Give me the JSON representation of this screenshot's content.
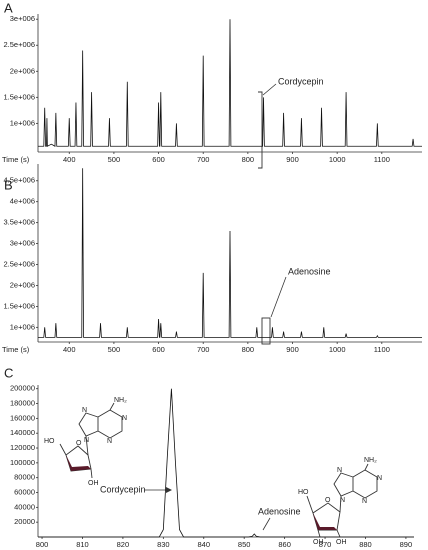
{
  "chart_data": [
    {
      "type": "line",
      "panel_label": "A",
      "x_label": "Time (s)",
      "color": "#111111",
      "annotations": [
        "Cordycepin"
      ],
      "xlim": [
        330,
        1190
      ],
      "xticks": [
        400,
        500,
        600,
        700,
        800,
        900,
        1000,
        1100
      ],
      "ylim": [
        450000,
        3100000
      ],
      "yticks": [
        {
          "value": 1000000,
          "label": "1e+006"
        },
        {
          "value": 1500000,
          "label": "1.5e+006"
        },
        {
          "value": 2000000,
          "label": "2e+006"
        },
        {
          "value": 2500000,
          "label": "2.5e+006"
        },
        {
          "value": 3000000,
          "label": "3e+006"
        }
      ],
      "x": [
        330,
        340,
        343,
        345,
        347,
        349,
        350,
        351,
        360,
        368,
        370,
        372,
        398,
        400,
        402,
        413,
        415,
        417,
        428,
        430,
        432,
        448,
        450,
        452,
        488,
        490,
        492,
        528,
        530,
        532,
        598,
        600,
        602,
        603,
        605,
        607,
        638,
        640,
        642,
        698,
        700,
        702,
        758,
        760,
        762,
        833,
        835,
        837,
        878,
        880,
        882,
        918,
        920,
        922,
        963,
        965,
        967,
        1018,
        1020,
        1022,
        1088,
        1090,
        1092,
        1168,
        1170,
        1172,
        1190
      ],
      "values": [
        560000,
        560000,
        560000,
        1300000,
        560000,
        560000,
        1100000,
        560000,
        600000,
        560000,
        1200000,
        560000,
        560000,
        1100000,
        560000,
        560000,
        1400000,
        560000,
        560000,
        2400000,
        560000,
        560000,
        1600000,
        560000,
        560000,
        1100000,
        560000,
        560000,
        1800000,
        560000,
        560000,
        1400000,
        560000,
        560000,
        1600000,
        560000,
        560000,
        1000000,
        560000,
        560000,
        2300000,
        560000,
        560000,
        3000000,
        560000,
        560000,
        1500000,
        560000,
        560000,
        1200000,
        560000,
        560000,
        1100000,
        560000,
        560000,
        1300000,
        560000,
        560000,
        1600000,
        560000,
        560000,
        1000000,
        560000,
        560000,
        700000,
        560000,
        560000
      ]
    },
    {
      "type": "line",
      "panel_label": "B",
      "x_label": "Time (s)",
      "color": "#111111",
      "annotations": [
        "Adenosine"
      ],
      "xlim": [
        330,
        1190
      ],
      "xticks": [
        400,
        500,
        600,
        700,
        800,
        900,
        1000,
        1100
      ],
      "ylim": [
        650000,
        4900000
      ],
      "yticks": [
        {
          "value": 1000000,
          "label": "1e+006"
        },
        {
          "value": 1500000,
          "label": "1.5e+006"
        },
        {
          "value": 2000000,
          "label": "2e+006"
        },
        {
          "value": 2500000,
          "label": "2.5e+006"
        },
        {
          "value": 3000000,
          "label": "3e+006"
        },
        {
          "value": 3500000,
          "label": "3.5e+006"
        },
        {
          "value": 4000000,
          "label": "4e+006"
        },
        {
          "value": 4500000,
          "label": "4.5e+006"
        }
      ],
      "x": [
        330,
        343,
        345,
        347,
        368,
        370,
        372,
        428,
        430,
        432,
        468,
        470,
        472,
        528,
        530,
        532,
        598,
        600,
        602,
        603,
        605,
        607,
        638,
        640,
        642,
        698,
        700,
        702,
        758,
        760,
        762,
        818,
        820,
        822,
        853,
        855,
        857,
        878,
        880,
        882,
        918,
        920,
        922,
        968,
        970,
        972,
        1018,
        1020,
        1022,
        1088,
        1090,
        1092,
        1190
      ],
      "values": [
        760000,
        760000,
        1000000,
        760000,
        760000,
        1100000,
        760000,
        760000,
        4800000,
        760000,
        760000,
        1100000,
        760000,
        760000,
        1000000,
        760000,
        760000,
        1200000,
        760000,
        760000,
        1100000,
        760000,
        760000,
        900000,
        760000,
        760000,
        2300000,
        760000,
        760000,
        3300000,
        760000,
        760000,
        1000000,
        760000,
        760000,
        1000000,
        760000,
        760000,
        900000,
        760000,
        760000,
        900000,
        760000,
        760000,
        1000000,
        760000,
        760000,
        850000,
        760000,
        760000,
        800000,
        760000,
        760000
      ]
    },
    {
      "type": "line",
      "panel_label": "C",
      "color": "#111111",
      "annotations": [
        "Cordycepin",
        "Adenosine"
      ],
      "xlim": [
        799,
        892
      ],
      "xticks": [
        800,
        810,
        820,
        830,
        840,
        850,
        860,
        870,
        880,
        890
      ],
      "ylim": [
        0,
        205000
      ],
      "yticks": [
        20000,
        40000,
        60000,
        80000,
        100000,
        120000,
        140000,
        160000,
        180000,
        200000
      ],
      "x": [
        799,
        829,
        830,
        831,
        832,
        833,
        834,
        835,
        851,
        852,
        852.5,
        853,
        854,
        892
      ],
      "values": [
        0,
        0,
        10000,
        110000,
        200000,
        100000,
        10000,
        0,
        0,
        1000,
        4000,
        1000,
        0,
        0
      ]
    }
  ],
  "structures": {
    "cordycepin": [
      "NH₂",
      "N",
      "N",
      "N",
      "N",
      "HO",
      "O",
      "OH"
    ],
    "adenosine": [
      "NH₂",
      "N",
      "N",
      "N",
      "N",
      "HO",
      "O",
      "OH",
      "OH"
    ]
  }
}
